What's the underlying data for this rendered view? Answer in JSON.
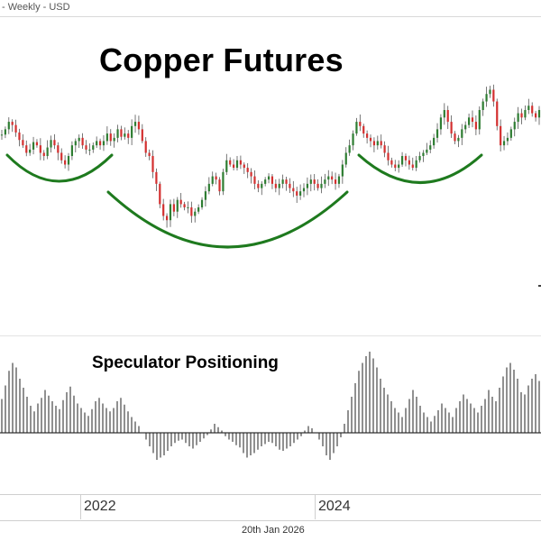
{
  "header": {
    "text": "- Weekly - USD"
  },
  "footer": {
    "date": "20th Jan 2026"
  },
  "chart_data": [
    {
      "type": "candlestick",
      "title": "Copper Futures",
      "currency": "USD",
      "interval": "Weekly",
      "x_tick_labels": [
        "2022",
        "2024"
      ],
      "x_range": [
        "2021-02",
        "2026-01"
      ],
      "series": [
        {
          "values": [
            4.55,
            4.6,
            4.67,
            4.64,
            4.57,
            4.5,
            4.45,
            4.38,
            4.41,
            4.48,
            4.45,
            4.38,
            4.35,
            4.43,
            4.5,
            4.45,
            4.38,
            4.31,
            4.27,
            4.35,
            4.45,
            4.49,
            4.52,
            4.45,
            4.41,
            4.41,
            4.45,
            4.49,
            4.45,
            4.49,
            4.56,
            4.49,
            4.52,
            4.6,
            4.53,
            4.56,
            4.52,
            4.63,
            4.67,
            4.6,
            4.49,
            4.38,
            4.35,
            4.2,
            4.09,
            3.9,
            3.79,
            3.75,
            3.9,
            3.83,
            3.94,
            3.9,
            3.87,
            3.87,
            3.79,
            3.83,
            3.87,
            3.94,
            4.02,
            4.09,
            4.16,
            4.13,
            4.02,
            4.2,
            4.31,
            4.27,
            4.24,
            4.31,
            4.27,
            4.24,
            4.2,
            4.16,
            4.09,
            4.05,
            4.09,
            4.13,
            4.16,
            4.09,
            4.05,
            4.09,
            4.13,
            4.09,
            4.05,
            4.02,
            3.98,
            4.02,
            4.05,
            4.09,
            4.13,
            4.09,
            4.05,
            4.09,
            4.13,
            4.16,
            4.13,
            4.09,
            4.16,
            4.27,
            4.38,
            4.45,
            4.56,
            4.67,
            4.63,
            4.56,
            4.52,
            4.49,
            4.45,
            4.49,
            4.45,
            4.38,
            4.31,
            4.27,
            4.24,
            4.27,
            4.35,
            4.31,
            4.27,
            4.24,
            4.31,
            4.35,
            4.38,
            4.41,
            4.45,
            4.52,
            4.6,
            4.71,
            4.78,
            4.67,
            4.56,
            4.49,
            4.52,
            4.6,
            4.64,
            4.71,
            4.67,
            4.6,
            4.78,
            4.86,
            4.93,
            4.97,
            4.86,
            4.63,
            4.45,
            4.49,
            4.52,
            4.6,
            4.67,
            4.75,
            4.71,
            4.78,
            4.82,
            4.75,
            4.71,
            4.78
          ]
        }
      ],
      "annotations": [
        {
          "kind": "arc"
        },
        {
          "kind": "arc"
        },
        {
          "kind": "arc"
        }
      ]
    },
    {
      "type": "bar",
      "title": "Speculator Positioning",
      "series": [
        {
          "values": [
            30,
            42,
            55,
            62,
            58,
            48,
            40,
            32,
            24,
            19,
            26,
            31,
            38,
            33,
            28,
            24,
            21,
            29,
            36,
            41,
            33,
            26,
            22,
            18,
            15,
            21,
            28,
            31,
            26,
            22,
            19,
            22,
            28,
            31,
            25,
            19,
            14,
            10,
            6,
            0,
            -6,
            -12,
            -18,
            -24,
            -22,
            -20,
            -16,
            -12,
            -9,
            -7,
            -6,
            -9,
            -12,
            -14,
            -11,
            -8,
            -5,
            -2,
            3,
            8,
            5,
            2,
            -3,
            -6,
            -8,
            -11,
            -13,
            -18,
            -22,
            -20,
            -18,
            -15,
            -12,
            -10,
            -8,
            -9,
            -12,
            -15,
            -16,
            -14,
            -12,
            -9,
            -6,
            -3,
            2,
            6,
            4,
            0,
            -6,
            -12,
            -20,
            -24,
            -18,
            -12,
            -4,
            8,
            20,
            32,
            44,
            55,
            62,
            68,
            72,
            66,
            58,
            48,
            40,
            34,
            28,
            22,
            18,
            14,
            22,
            30,
            38,
            32,
            24,
            18,
            14,
            10,
            15,
            20,
            26,
            22,
            18,
            14,
            22,
            28,
            34,
            30,
            26,
            22,
            18,
            24,
            30,
            38,
            32,
            28,
            40,
            50,
            58,
            62,
            56,
            48,
            36,
            34,
            42,
            48,
            52,
            46
          ]
        }
      ]
    }
  ]
}
